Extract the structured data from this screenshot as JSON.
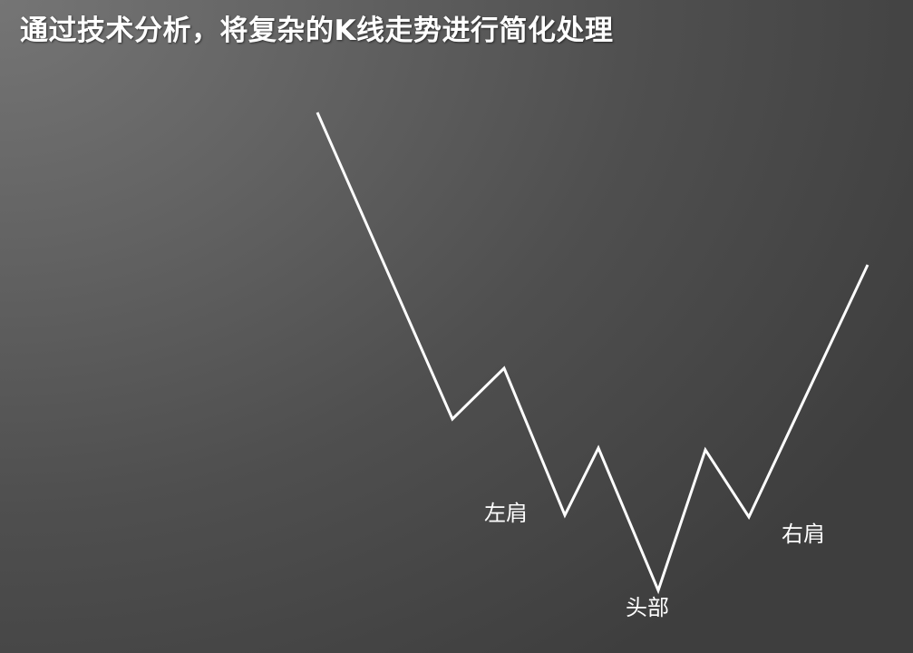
{
  "slide": {
    "title": "通过技术分析，将复杂的K线走势进行简化处理"
  },
  "diagram": {
    "pattern": "head-and-shoulders-bottom",
    "line_color": "#ffffff",
    "labels": {
      "left_shoulder": "左肩",
      "head": "头部",
      "right_shoulder": "右肩"
    }
  }
}
